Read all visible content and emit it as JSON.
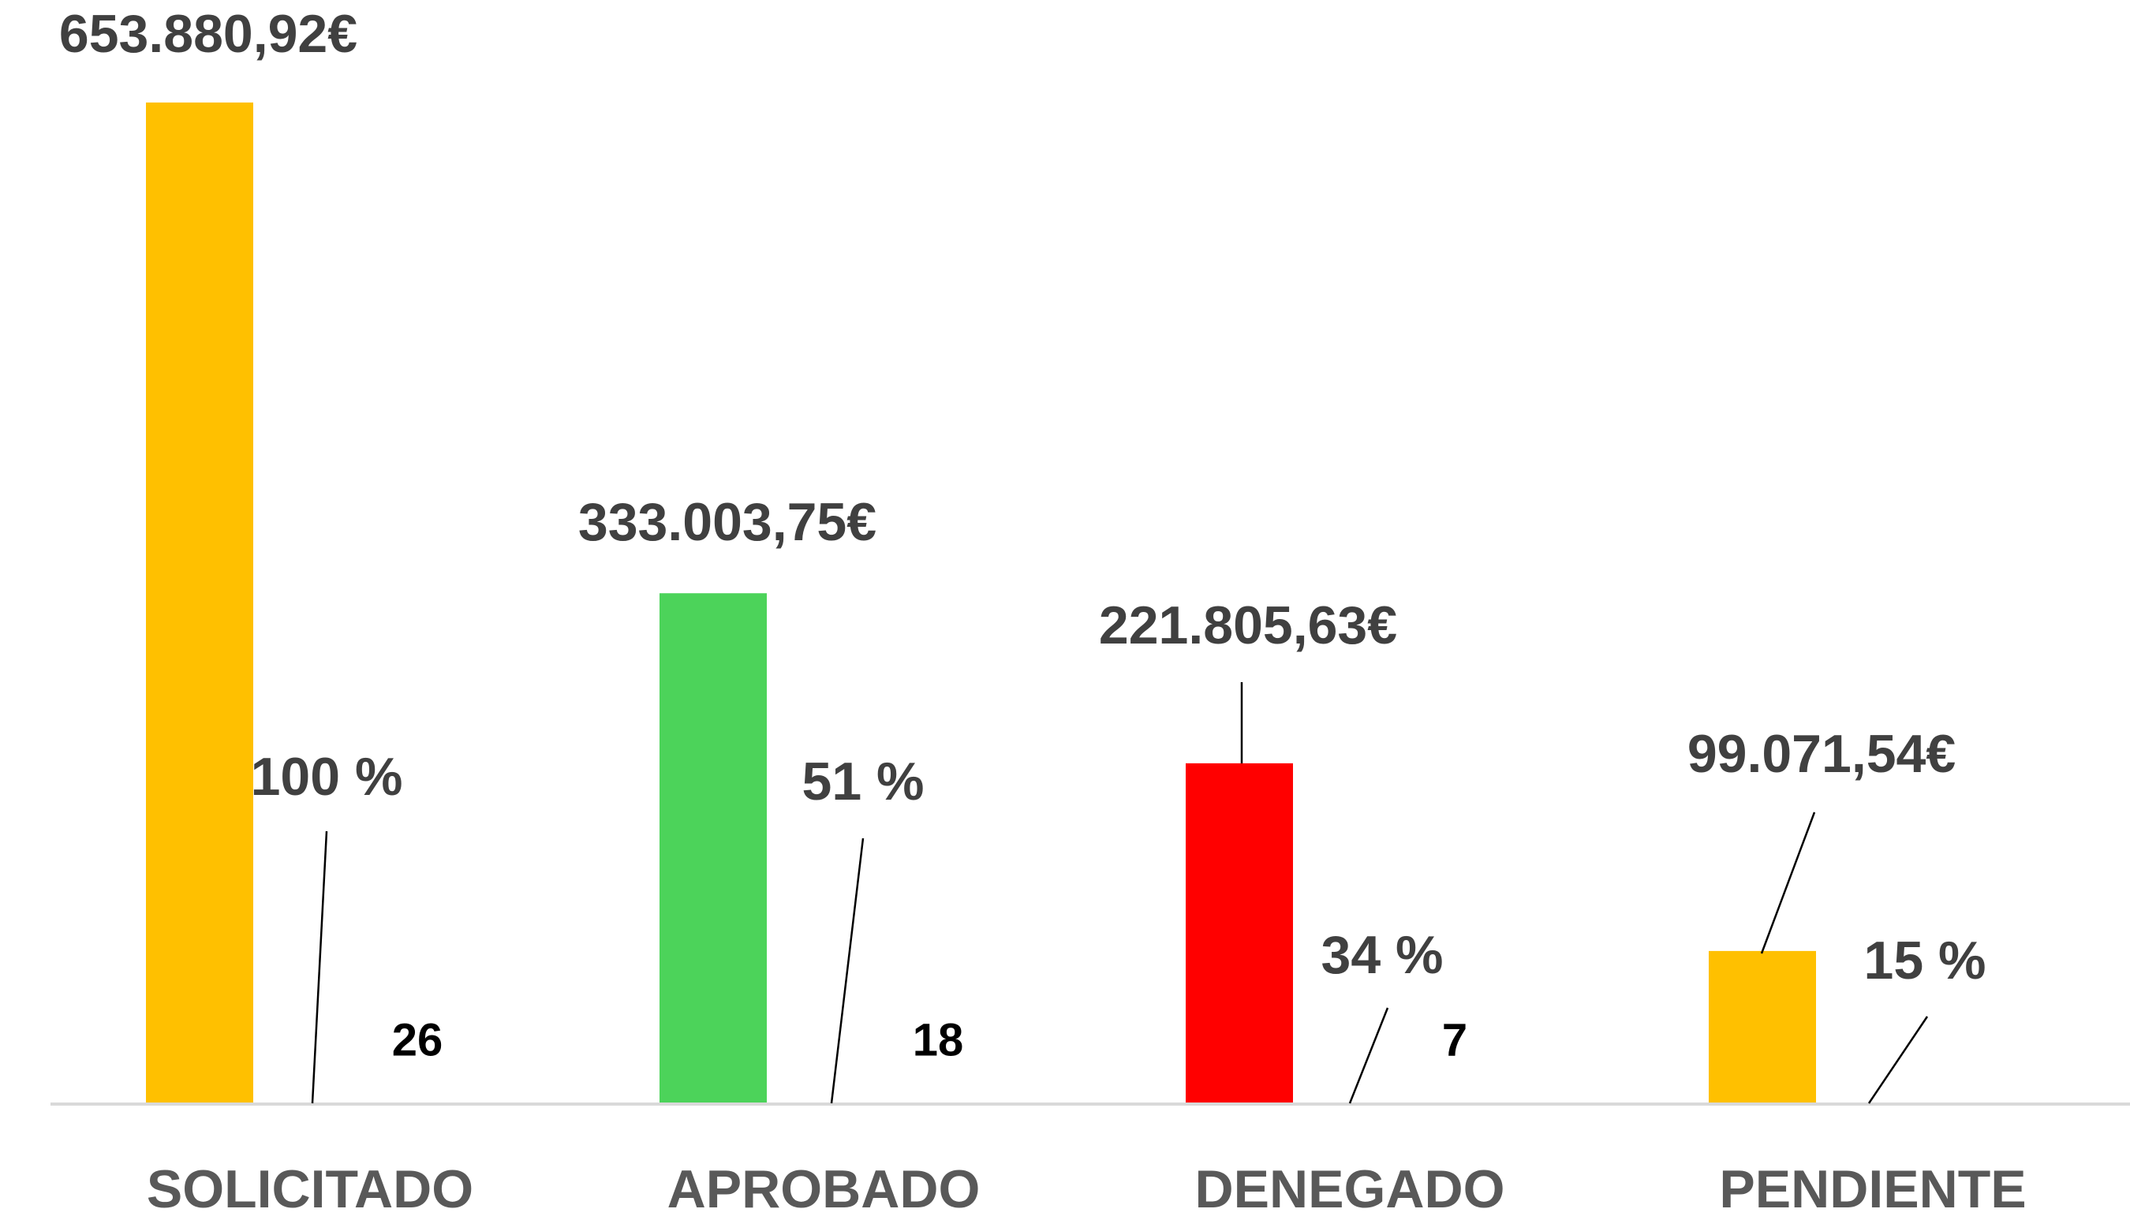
{
  "chart_data": {
    "type": "bar",
    "categories": [
      "SOLICITADO",
      "APROBADO",
      "DENEGADO",
      "PENDIENTE"
    ],
    "series": [
      {
        "values": [
          653880.92,
          333003.75,
          221805.63,
          99071.54
        ],
        "value_labels": [
          "653.880,92€",
          "333.003,75€",
          "221.805,63€",
          "99.071,54€"
        ],
        "colors": [
          "#ffc000",
          "#4cd35a",
          "#ff0000",
          "#ffc000"
        ]
      },
      {
        "values": [
          100,
          51,
          34,
          15
        ],
        "value_labels": [
          "100 %",
          "51 %",
          "34 %",
          "15 %"
        ]
      },
      {
        "values": [
          26,
          18,
          7,
          null
        ]
      }
    ]
  }
}
